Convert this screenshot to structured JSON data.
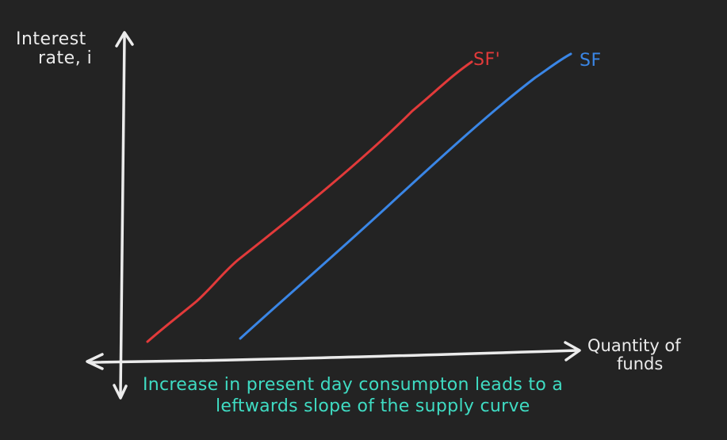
{
  "axes": {
    "y_label_line1": "Interest",
    "y_label_line2": "rate, i",
    "x_label_line1": "Quantity of",
    "x_label_line2": "funds"
  },
  "curves": {
    "original_label": "SF",
    "shifted_label": "SF'"
  },
  "caption": {
    "line1": "Increase in present day consumpton leads to a",
    "line2": "leftwards slope of the supply curve"
  },
  "colors": {
    "background": "#232323",
    "axis": "#ebebeb",
    "original_curve": "#3a86e6",
    "shifted_curve": "#e23a3a",
    "caption": "#3fdcc3"
  }
}
